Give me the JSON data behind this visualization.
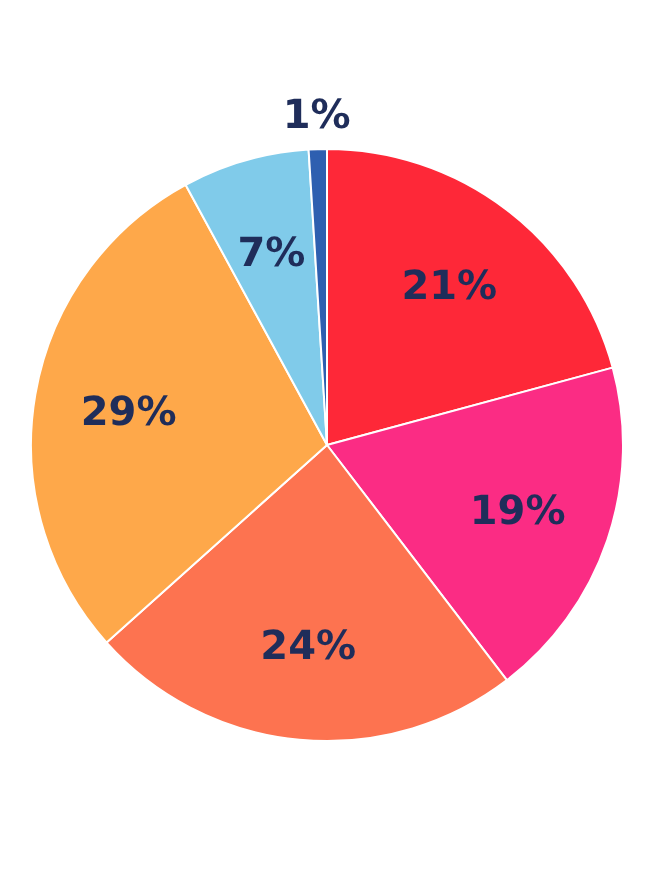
{
  "chart_data": {
    "type": "pie",
    "categories": [
      null,
      null,
      null,
      null,
      null,
      null
    ],
    "values": [
      21,
      19,
      24,
      29,
      7,
      1
    ],
    "colors": [
      "#fe2838",
      "#fb2c84",
      "#fd7350",
      "#fea84a",
      "#80cbea",
      "#2e5fb0"
    ],
    "value_labels": [
      "21%",
      "19%",
      "24%",
      "29%",
      "7%",
      "1%"
    ]
  }
}
